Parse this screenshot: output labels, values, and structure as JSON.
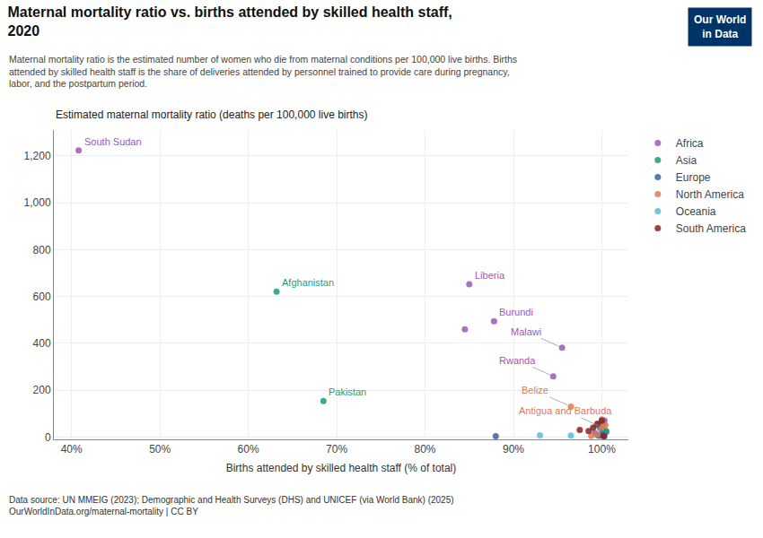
{
  "chart_data": {
    "type": "scatter",
    "title": "Maternal mortality ratio vs. births attended by skilled health staff,\n2020",
    "subtitle": "Maternal mortality ratio is the estimated number of women who die from maternal conditions per 100,000 live births. Births\nattended by skilled health staff is the share of deliveries attended by personnel trained to provide care during pregnancy,\nlabor, and the postpartum period.",
    "ylabel": "Estimated maternal mortality ratio (deaths per 100,000 live births)",
    "xlabel": "Births attended by skilled health staff (% of total)",
    "source": "Data source: UN MMEIG (2023); Demographic and Health Surveys (DHS) and UNICEF (via World Bank) (2025)\nOurWorldInData.org/maternal-mortality | CC BY",
    "logo": {
      "text": "Our World\nin Data",
      "color": "#003366"
    },
    "series": [
      {
        "name": "Africa",
        "color": "#9b59b6",
        "x": [
          84.5,
          99.2,
          99.8,
          100.2,
          100.5,
          100.3,
          40.8,
          85.0,
          87.8,
          95.5,
          94.5
        ],
        "y": [
          460,
          18,
          38,
          55,
          22,
          70,
          1223,
          652,
          494,
          381,
          259
        ]
      },
      {
        "name": "Asia",
        "color": "#1a9e78",
        "x": [
          99.5,
          100.0,
          100.2,
          100.5,
          99.4,
          100.0,
          63.2,
          68.5
        ],
        "y": [
          8,
          14,
          30,
          25,
          50,
          65,
          620,
          154
        ]
      },
      {
        "name": "Europe",
        "color": "#3a5fa0",
        "x": [
          99.7,
          100.1,
          100.3,
          88.0
        ],
        "y": [
          5,
          9,
          3,
          3
        ]
      },
      {
        "name": "North America",
        "color": "#e07b4f",
        "x": [
          98.8,
          100.4,
          99.5,
          100.0,
          96.5,
          100.0
        ],
        "y": [
          4,
          50,
          10,
          75,
          130,
          42
        ]
      },
      {
        "name": "Oceania",
        "color": "#5bbcd6",
        "x": [
          93.0,
          96.5
        ],
        "y": [
          7,
          6
        ]
      },
      {
        "name": "South America",
        "color": "#8b2222",
        "x": [
          100.2,
          99.5,
          100.0,
          98.5,
          99.0,
          97.5
        ],
        "y": [
          3,
          57,
          70,
          25,
          40,
          30
        ]
      }
    ],
    "annotations": [
      {
        "text": "South Sudan",
        "x": 40.8,
        "y": 1223,
        "color": "#9b59b6"
      },
      {
        "text": "Afghanistan",
        "x": 63.2,
        "y": 620,
        "color": "#1a9e78"
      },
      {
        "text": "Liberia",
        "x": 85.0,
        "y": 652,
        "color": "#9b59b6"
      },
      {
        "text": "Burundi",
        "x": 87.8,
        "y": 494,
        "color": "#9b59b6"
      },
      {
        "text": "Pakistan",
        "x": 68.5,
        "y": 154,
        "color": "#1a9e78"
      },
      {
        "text": "Malawi",
        "x": 95.5,
        "y": 381,
        "color": "#9b59b6"
      },
      {
        "text": "Rwanda",
        "x": 94.5,
        "y": 259,
        "color": "#9b59b6"
      },
      {
        "text": "Belize",
        "x": 96.5,
        "y": 130,
        "color": "#e07b4f"
      },
      {
        "text": "Antigua and Barbuda",
        "x": 100.0,
        "y": 42,
        "color": "#e07b4f"
      }
    ],
    "xlim": [
      38,
      103
    ],
    "ylim": [
      -10,
      1310
    ],
    "xticks": [
      {
        "value": 40,
        "label": "40%"
      },
      {
        "value": 50,
        "label": "50%"
      },
      {
        "value": 60,
        "label": "60%"
      },
      {
        "value": 70,
        "label": "70%"
      },
      {
        "value": 80,
        "label": "80%"
      },
      {
        "value": 90,
        "label": "90%"
      },
      {
        "value": 100,
        "label": "100%"
      }
    ],
    "yticks": [
      0,
      200,
      400,
      600,
      800,
      {
        "value": 1000,
        "label": "1,000"
      },
      {
        "value": 1200,
        "label": "1,200"
      }
    ],
    "grid": true,
    "legend": "upper right"
  }
}
